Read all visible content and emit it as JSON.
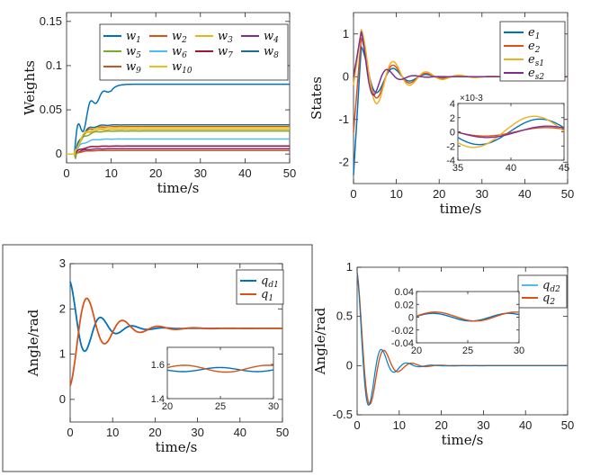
{
  "palette": [
    "#0072BD",
    "#D95319",
    "#EDB120",
    "#7E2F8E",
    "#77AC30",
    "#4DBEEE",
    "#A2142F",
    "#1E6E8E",
    "#C8551E",
    "#E6C21E"
  ],
  "chart_data": [
    {
      "type": "line",
      "ylabel": "Weights",
      "xlabel": "time/s",
      "xlim": [
        0,
        50
      ],
      "ylim": [
        -0.01,
        0.16
      ],
      "xticks": [
        "0",
        "10",
        "20",
        "30",
        "40",
        "50"
      ],
      "yticks": [
        "0",
        "0.05",
        "0.1",
        "0.15"
      ],
      "grid": false,
      "legend_position": "top-right",
      "legend_cols": 4,
      "series": [
        {
          "name": "w1",
          "sym": "w",
          "sub": "1",
          "final": 0.079
        },
        {
          "name": "w2",
          "sym": "w",
          "sub": "2",
          "final": 0.031
        },
        {
          "name": "w3",
          "sym": "w",
          "sub": "3",
          "final": 0.028
        },
        {
          "name": "w4",
          "sym": "w",
          "sub": "4",
          "final": 0.006
        },
        {
          "name": "w5",
          "sym": "w",
          "sub": "5",
          "final": 0.026
        },
        {
          "name": "w6",
          "sym": "w",
          "sub": "6",
          "final": 0.017
        },
        {
          "name": "w7",
          "sym": "w",
          "sub": "7",
          "final": 0.009
        },
        {
          "name": "w8",
          "sym": "w",
          "sub": "8",
          "final": 0.033
        },
        {
          "name": "w9",
          "sym": "w",
          "sub": "9",
          "final": 0.004
        },
        {
          "name": "w10",
          "sym": "w",
          "sub": "10",
          "final": 0.03
        }
      ]
    },
    {
      "type": "line",
      "ylabel": "States",
      "xlabel": "time/s",
      "xlim": [
        0,
        50
      ],
      "ylim": [
        -2.5,
        1.5
      ],
      "xticks": [
        "0",
        "10",
        "20",
        "30",
        "40",
        "50"
      ],
      "yticks": [
        "-2",
        "-1",
        "0",
        "1"
      ],
      "legend_position": "top-right",
      "series": [
        {
          "name": "e1",
          "sym": "e",
          "sub": "1",
          "initial": -2.3,
          "peak": 0.7,
          "omega": 0.82,
          "decay": 0.17
        },
        {
          "name": "e2",
          "sym": "e",
          "sub": "2",
          "initial": -1.3,
          "peak": 0.9,
          "omega": 0.82,
          "decay": 0.16
        },
        {
          "name": "es1",
          "sym": "e",
          "sub": "s1",
          "initial": -0.2,
          "peak": 1.1,
          "omega": 0.82,
          "decay": 0.15
        },
        {
          "name": "es2",
          "sym": "e",
          "sub": "s2",
          "initial": 0.0,
          "peak": 1.05,
          "omega": 1.0,
          "decay": 0.3
        }
      ],
      "inset": {
        "xlim": [
          35,
          45
        ],
        "ylim": [
          -4,
          4
        ],
        "xticks": [
          "35",
          "40",
          "45"
        ],
        "yticks": [
          "-4",
          "-2",
          "0",
          "2",
          "4"
        ],
        "scale_note": "×10-3"
      }
    },
    {
      "type": "line",
      "ylabel": "Angle/rad",
      "xlabel": "time/s",
      "xlim": [
        0,
        50
      ],
      "ylim": [
        -0.5,
        3
      ],
      "xticks": [
        "0",
        "10",
        "20",
        "30",
        "40",
        "50"
      ],
      "yticks": [
        "0",
        "1",
        "2",
        "3"
      ],
      "legend_position": "top-right",
      "series": [
        {
          "name": "qd1",
          "sym": "q",
          "sub": "d1",
          "initial": 2.6,
          "final": 1.57,
          "omega": 0.85,
          "decay": 0.2
        },
        {
          "name": "q1",
          "sym": "q",
          "sub": "1",
          "initial": 0.3,
          "final": 1.57,
          "omega": 0.75,
          "decay": 0.16
        }
      ],
      "inset": {
        "xlim": [
          20,
          30
        ],
        "ylim": [
          1.4,
          1.7
        ],
        "xticks": [
          "20",
          "25",
          "30"
        ],
        "yticks": [
          "1.4",
          "1.6"
        ]
      }
    },
    {
      "type": "line",
      "ylabel": "Angle/rad",
      "xlabel": "time/s",
      "xlim": [
        0,
        50
      ],
      "ylim": [
        -0.5,
        1
      ],
      "xticks": [
        "0",
        "10",
        "20",
        "30",
        "40",
        "50"
      ],
      "yticks": [
        "-0.5",
        "0",
        "0.5",
        "1"
      ],
      "legend_position": "top-right",
      "series": [
        {
          "name": "qd2",
          "sym": "q",
          "sub": "d2",
          "initial": 0.95,
          "final": 0.0,
          "omega": 1.05,
          "decay": 0.3
        },
        {
          "name": "q2",
          "sym": "q",
          "sub": "2",
          "initial": 0.95,
          "final": 0.0,
          "omega": 0.95,
          "decay": 0.28
        }
      ],
      "inset": {
        "xlim": [
          20,
          30
        ],
        "ylim": [
          -0.04,
          0.04
        ],
        "xticks": [
          "20",
          "25",
          "30"
        ],
        "yticks": [
          "-0.04",
          "-0.02",
          "0",
          "0.02",
          "0.04"
        ]
      }
    }
  ]
}
